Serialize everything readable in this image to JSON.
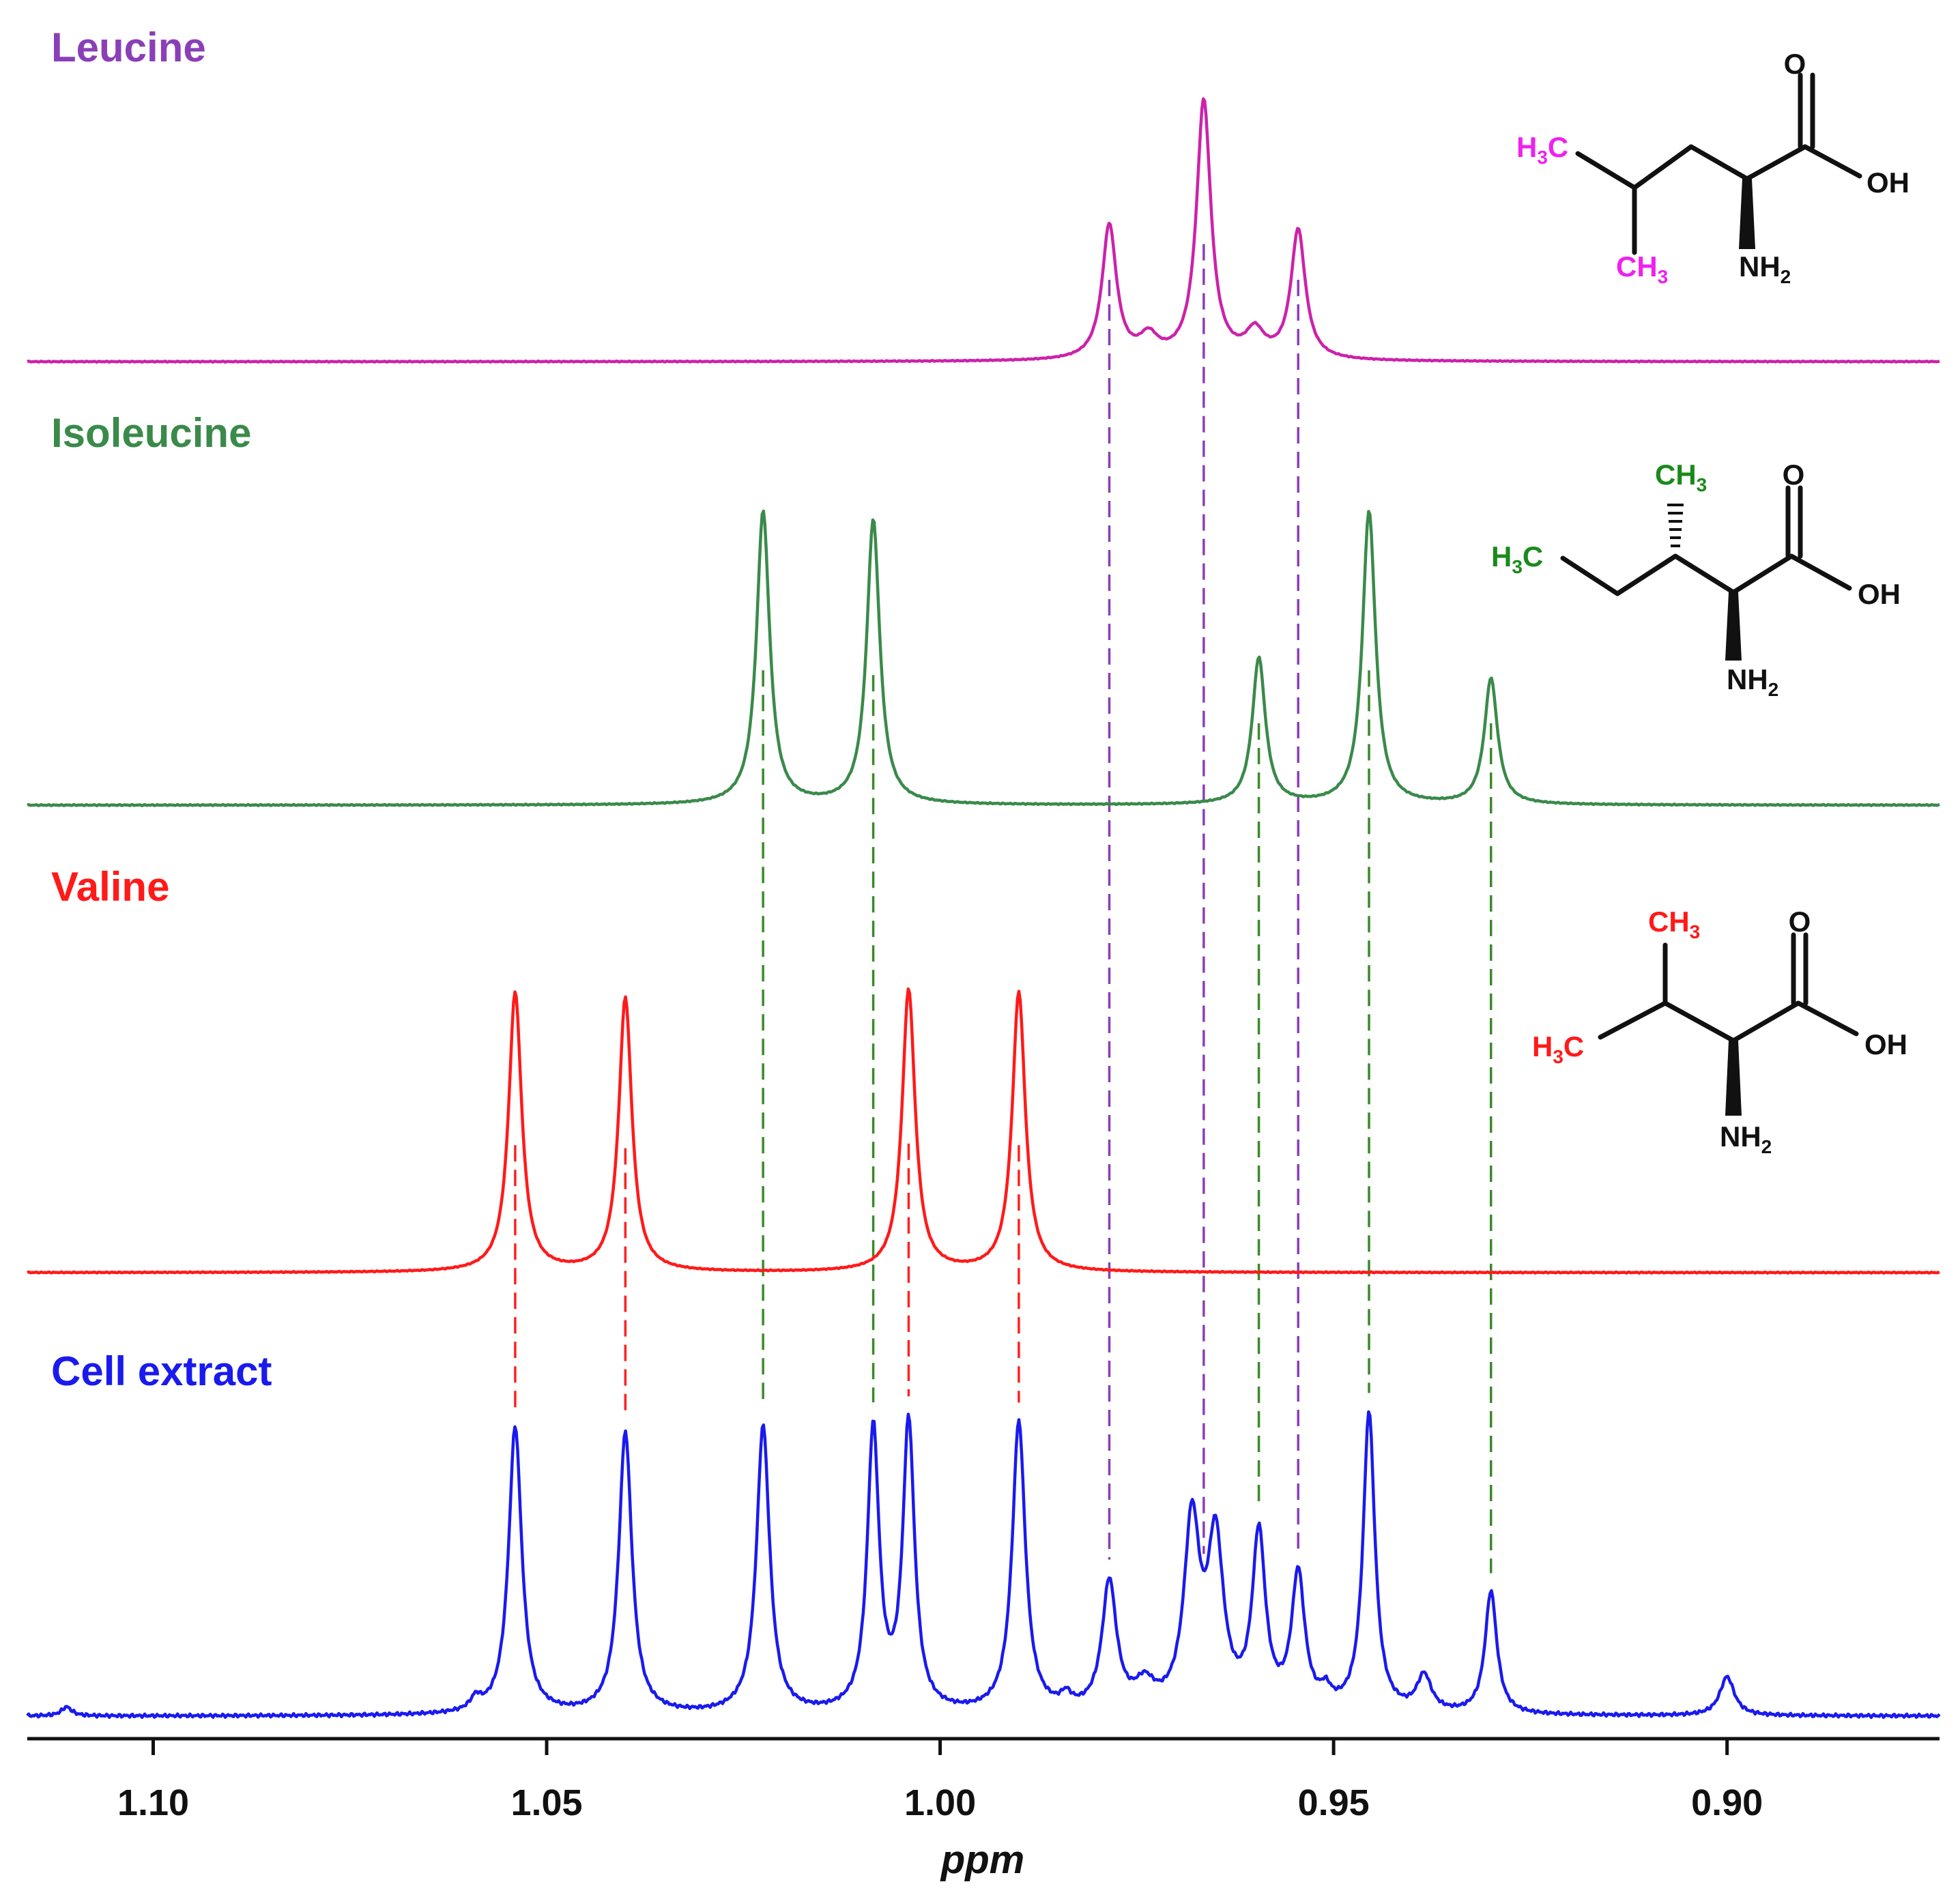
{
  "chart_data": {
    "type": "line",
    "x_label": "ppm",
    "x_range": [
      1.116,
      0.873
    ],
    "x_reversed": true,
    "x_ticks": [
      "1.10",
      "1.05",
      "1.00",
      "0.95",
      "0.90"
    ],
    "x_tick_values": [
      1.1,
      1.05,
      1.0,
      0.95,
      0.9
    ],
    "y_axis_shown": false,
    "grid": false,
    "series": [
      {
        "name": "Leucine",
        "color": "#cc22aa",
        "label_color": "#8a3fb8",
        "peaks": [
          {
            "ppm": 0.9785,
            "height": 0.52,
            "width": 0.0011
          },
          {
            "ppm": 0.9665,
            "height": 1.0,
            "width": 0.0011
          },
          {
            "ppm": 0.9545,
            "height": 0.5,
            "width": 0.0011
          },
          {
            "ppm": 0.9735,
            "height": 0.08,
            "width": 0.0014
          },
          {
            "ppm": 0.96,
            "height": 0.1,
            "width": 0.0014
          }
        ],
        "guide_ppm": [
          0.9785,
          0.9665,
          0.9545
        ],
        "guide_color": "#8a3fb8"
      },
      {
        "name": "Isoleucine",
        "color": "#3a8a4a",
        "label_color": "#3a8a4a",
        "peaks": [
          {
            "ppm": 1.0225,
            "height": 1.0,
            "width": 0.001
          },
          {
            "ppm": 1.0085,
            "height": 0.97,
            "width": 0.001
          },
          {
            "ppm": 0.9595,
            "height": 0.5,
            "width": 0.001
          },
          {
            "ppm": 0.9455,
            "height": 1.0,
            "width": 0.001
          },
          {
            "ppm": 0.93,
            "height": 0.43,
            "width": 0.001
          }
        ],
        "guide_ppm": [
          1.0225,
          1.0085,
          0.9595,
          0.9455,
          0.93
        ],
        "guide_color": "#3a8a2a"
      },
      {
        "name": "Valine",
        "color": "#ff1a1a",
        "label_color": "#ff1a1a",
        "peaks": [
          {
            "ppm": 1.054,
            "height": 1.0,
            "width": 0.001
          },
          {
            "ppm": 1.04,
            "height": 0.98,
            "width": 0.001
          },
          {
            "ppm": 1.004,
            "height": 1.01,
            "width": 0.001
          },
          {
            "ppm": 0.99,
            "height": 1.0,
            "width": 0.001
          }
        ],
        "guide_ppm": [
          1.054,
          1.04,
          1.004,
          0.99
        ],
        "guide_color": "#ff2020"
      },
      {
        "name": "Cell extract",
        "color": "#1a1aee",
        "label_color": "#1a1aee",
        "peaks": [
          {
            "ppm": 1.054,
            "height": 0.96,
            "width": 0.001
          },
          {
            "ppm": 1.04,
            "height": 0.94,
            "width": 0.001
          },
          {
            "ppm": 1.0225,
            "height": 0.96,
            "width": 0.001
          },
          {
            "ppm": 1.0085,
            "height": 0.94,
            "width": 0.0009
          },
          {
            "ppm": 1.004,
            "height": 0.96,
            "width": 0.0009
          },
          {
            "ppm": 0.99,
            "height": 0.97,
            "width": 0.001
          },
          {
            "ppm": 0.9785,
            "height": 0.43,
            "width": 0.0011
          },
          {
            "ppm": 0.974,
            "height": 0.08,
            "width": 0.0015
          },
          {
            "ppm": 0.968,
            "height": 0.62,
            "width": 0.0012
          },
          {
            "ppm": 0.965,
            "height": 0.55,
            "width": 0.0012
          },
          {
            "ppm": 0.9595,
            "height": 0.58,
            "width": 0.001
          },
          {
            "ppm": 0.9545,
            "height": 0.45,
            "width": 0.001
          },
          {
            "ppm": 0.9455,
            "height": 1.0,
            "width": 0.0009
          },
          {
            "ppm": 0.9385,
            "height": 0.12,
            "width": 0.0011
          },
          {
            "ppm": 0.93,
            "height": 0.41,
            "width": 0.0009
          },
          {
            "ppm": 0.9,
            "height": 0.13,
            "width": 0.0011
          },
          {
            "ppm": 1.059,
            "height": 0.04,
            "width": 0.0008
          },
          {
            "ppm": 0.984,
            "height": 0.04,
            "width": 0.0008
          },
          {
            "ppm": 0.951,
            "height": 0.05,
            "width": 0.0008
          },
          {
            "ppm": 1.111,
            "height": 0.03,
            "width": 0.0008
          }
        ]
      }
    ]
  },
  "structures": {
    "leucine": {
      "methyl_a": "H3C",
      "methyl_b": "CH3",
      "carbonyl_o": "O",
      "hydroxyl": "OH",
      "amine": "NH2"
    },
    "isoleucine": {
      "methyl_a": "H3C",
      "methyl_b": "CH3",
      "carbonyl_o": "O",
      "hydroxyl": "OH",
      "amine": "NH2"
    },
    "valine": {
      "methyl_a": "H3C",
      "methyl_b": "CH3",
      "carbonyl_o": "O",
      "hydroxyl": "OH",
      "amine": "NH2"
    }
  }
}
